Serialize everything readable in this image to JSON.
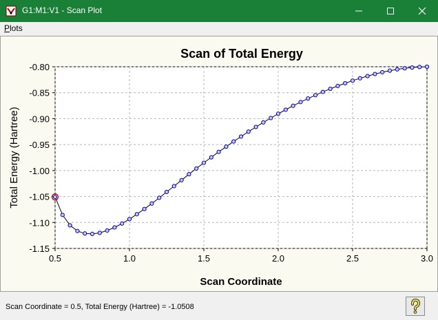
{
  "window": {
    "title": "G1:M1:V1 - Scan Plot",
    "icons": [
      "app-icon",
      "minimize-icon",
      "maximize-icon",
      "close-icon"
    ]
  },
  "menubar": {
    "plots": {
      "accel": "P",
      "rest": "lots"
    }
  },
  "status": {
    "text": "Scan Coordinate = 0.5, Total Energy (Hartree) = -1.0508"
  },
  "help": {
    "icon": "help-icon"
  },
  "colors": {
    "titlebar": "#1a7f37",
    "plot_background": "#fafaf0",
    "series_line": "#000000",
    "marker_fill": "#c8c8ff",
    "marker_stroke": "#0000b4",
    "selected_marker": "#c00000"
  },
  "chart_data": {
    "type": "line",
    "title": "Scan of Total Energy",
    "xlabel": "Scan Coordinate",
    "ylabel": "Total Energy (Hartree)",
    "xlim": [
      0.5,
      3.0
    ],
    "ylim": [
      -1.15,
      -0.8
    ],
    "xticks": [
      "0.5",
      "1.0",
      "1.5",
      "2.0",
      "2.5",
      "3.0"
    ],
    "yticks": [
      "-0.80",
      "-0.85",
      "-0.90",
      "-0.95",
      "-1.00",
      "-1.05",
      "-1.10",
      "-1.15"
    ],
    "grid": true,
    "selected_index": 0,
    "series": [
      {
        "x": [
          0.5,
          0.55,
          0.6,
          0.65,
          0.7,
          0.75,
          0.8,
          0.85,
          0.9,
          0.95,
          1.0,
          1.05,
          1.1,
          1.15,
          1.2,
          1.25,
          1.3,
          1.35,
          1.4,
          1.45,
          1.5,
          1.55,
          1.6,
          1.65,
          1.7,
          1.75,
          1.8,
          1.85,
          1.9,
          1.95,
          2.0,
          2.05,
          2.1,
          2.15,
          2.2,
          2.25,
          2.3,
          2.35,
          2.4,
          2.45,
          2.5,
          2.55,
          2.6,
          2.65,
          2.7,
          2.75,
          2.8,
          2.85,
          2.9,
          2.95,
          3.0
        ],
        "y": [
          -1.0508,
          -1.0855,
          -1.1055,
          -1.1165,
          -1.1212,
          -1.122,
          -1.12,
          -1.1155,
          -1.1095,
          -1.102,
          -1.0935,
          -1.084,
          -1.074,
          -1.0635,
          -1.0525,
          -1.0412,
          -1.03,
          -1.0185,
          -1.007,
          -0.996,
          -0.985,
          -0.9745,
          -0.964,
          -0.954,
          -0.944,
          -0.9345,
          -0.925,
          -0.916,
          -0.9072,
          -0.8988,
          -0.8905,
          -0.8828,
          -0.8752,
          -0.868,
          -0.8612,
          -0.8547,
          -0.8485,
          -0.8425,
          -0.837,
          -0.8318,
          -0.8268,
          -0.8222,
          -0.818,
          -0.814,
          -0.8105,
          -0.8075,
          -0.805,
          -0.803,
          -0.8015,
          -0.8005,
          -0.8
        ]
      }
    ]
  }
}
